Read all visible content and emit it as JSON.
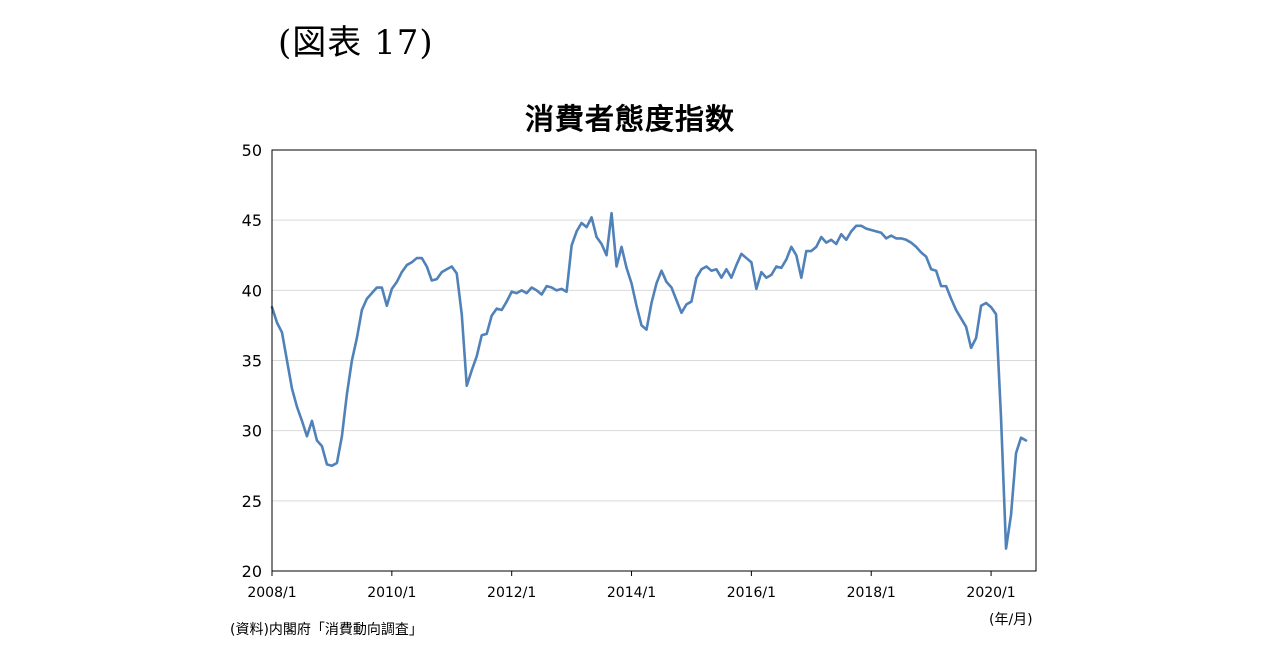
{
  "figure_label": "(図表 17)",
  "source": "(資料)内閣府「消費動向調査」",
  "unit_label": "(年/月)",
  "colors": {
    "line": "#5081b8",
    "grid": "#d9d9d9",
    "frame": "#000000"
  },
  "chart_data": {
    "type": "line",
    "title": "消費者態度指数",
    "xlabel": "",
    "ylabel": "",
    "ylim": [
      20,
      50
    ],
    "yticks": [
      20,
      25,
      30,
      35,
      40,
      45,
      50
    ],
    "x_start": "2008/1",
    "x_end": "2020/10",
    "x_ticks": [
      "2008/1",
      "2010/1",
      "2012/1",
      "2014/1",
      "2016/1",
      "2018/1",
      "2020/1"
    ],
    "grid": true,
    "legend": "none",
    "series": [
      {
        "values": [
          38.8,
          37.7,
          37.0,
          35.0,
          33.0,
          31.7,
          30.7,
          29.6,
          30.7,
          29.3,
          28.9,
          27.6,
          27.5,
          27.7,
          29.6,
          32.6,
          35.0,
          36.6,
          38.6,
          39.4,
          39.8,
          40.2,
          40.2,
          38.9,
          40.1,
          40.6,
          41.3,
          41.8,
          42.0,
          42.3,
          42.3,
          41.7,
          40.7,
          40.8,
          41.3,
          41.5,
          41.7,
          41.2,
          38.3,
          33.2,
          34.3,
          35.3,
          36.8,
          36.9,
          38.2,
          38.7,
          38.6,
          39.2,
          39.9,
          39.8,
          40.0,
          39.8,
          40.2,
          40.0,
          39.7,
          40.3,
          40.2,
          40.0,
          40.1,
          39.9,
          43.2,
          44.2,
          44.8,
          44.5,
          45.2,
          43.8,
          43.3,
          42.5,
          45.5,
          41.7,
          43.1,
          41.6,
          40.5,
          38.9,
          37.5,
          37.2,
          39.1,
          40.5,
          41.4,
          40.6,
          40.2,
          39.3,
          38.4,
          39.0,
          39.2,
          40.9,
          41.5,
          41.7,
          41.4,
          41.5,
          40.9,
          41.5,
          40.9,
          41.8,
          42.6,
          42.3,
          42.0,
          40.1,
          41.3,
          40.9,
          41.1,
          41.7,
          41.6,
          42.2,
          43.1,
          42.5,
          40.9,
          42.8,
          42.8,
          43.1,
          43.8,
          43.4,
          43.6,
          43.3,
          44.0,
          43.6,
          44.2,
          44.6,
          44.6,
          44.4,
          44.3,
          44.2,
          44.1,
          43.7,
          43.9,
          43.7,
          43.7,
          43.6,
          43.4,
          43.1,
          42.7,
          42.4,
          41.5,
          41.4,
          40.3,
          40.3,
          39.4,
          38.6,
          38.0,
          37.4,
          35.9,
          36.6,
          38.9,
          39.1,
          38.8,
          38.3,
          30.9,
          21.6,
          24.0,
          28.4,
          29.5,
          29.3
        ]
      }
    ]
  }
}
